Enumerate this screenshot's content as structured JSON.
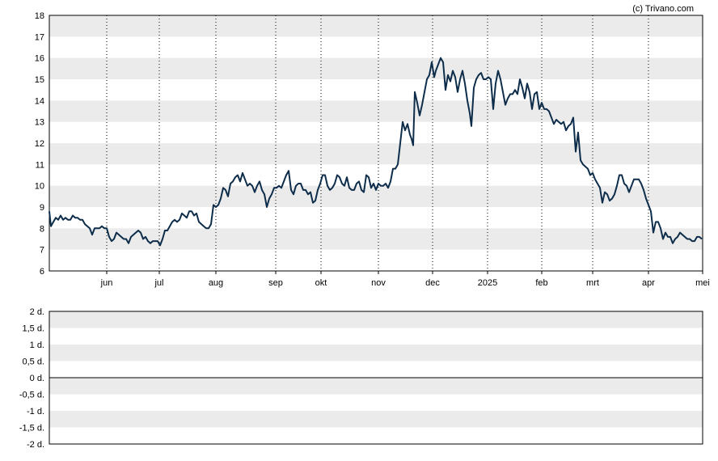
{
  "watermark": "(c) Trivano.com",
  "chart_data": [
    {
      "type": "line",
      "title": "",
      "xlabel": "",
      "ylabel": "",
      "ylim": [
        6,
        18
      ],
      "yticks": [
        "6",
        "7",
        "8",
        "9",
        "10",
        "11",
        "12",
        "13",
        "14",
        "15",
        "16",
        "17",
        "18"
      ],
      "xticks": [
        "jun",
        "jul",
        "aug",
        "sep",
        "okt",
        "nov",
        "dec",
        "2025",
        "feb",
        "mrt",
        "apr",
        "mei"
      ],
      "grid": "alternating horizontal bands, dotted vertical lines at month ticks",
      "line_color": "#0d2d4a",
      "series": [
        {
          "values": [
            [
              0,
              8.8
            ],
            [
              2,
              8.1
            ],
            [
              5,
              8.3
            ],
            [
              8,
              8.5
            ],
            [
              11,
              8.4
            ],
            [
              14,
              8.6
            ],
            [
              17,
              8.4
            ],
            [
              20,
              8.5
            ],
            [
              23,
              8.4
            ],
            [
              26,
              8.4
            ],
            [
              29,
              8.6
            ],
            [
              32,
              8.5
            ],
            [
              35,
              8.5
            ],
            [
              38,
              8.4
            ],
            [
              41,
              8.4
            ],
            [
              44,
              8.2
            ],
            [
              47,
              8.1
            ],
            [
              50,
              8.0
            ],
            [
              53,
              7.7
            ],
            [
              56,
              8.0
            ],
            [
              59,
              8.0
            ],
            [
              62,
              8.0
            ],
            [
              65,
              8.1
            ],
            [
              68,
              8.0
            ],
            [
              71,
              8.0
            ],
            [
              74,
              7.6
            ],
            [
              77,
              7.4
            ],
            [
              80,
              7.5
            ],
            [
              83,
              7.8
            ],
            [
              86,
              7.7
            ],
            [
              89,
              7.6
            ],
            [
              92,
              7.5
            ],
            [
              95,
              7.5
            ],
            [
              98,
              7.3
            ],
            [
              101,
              7.6
            ],
            [
              104,
              7.7
            ],
            [
              107,
              7.8
            ],
            [
              110,
              7.9
            ],
            [
              113,
              7.8
            ],
            [
              116,
              7.5
            ],
            [
              119,
              7.6
            ],
            [
              122,
              7.4
            ],
            [
              125,
              7.3
            ],
            [
              128,
              7.4
            ],
            [
              131,
              7.4
            ],
            [
              134,
              7.4
            ],
            [
              137,
              7.2
            ],
            [
              140,
              7.5
            ],
            [
              143,
              7.9
            ],
            [
              146,
              7.9
            ],
            [
              149,
              8.1
            ],
            [
              152,
              8.3
            ],
            [
              155,
              8.4
            ],
            [
              158,
              8.3
            ],
            [
              161,
              8.4
            ],
            [
              164,
              8.7
            ],
            [
              167,
              8.6
            ],
            [
              170,
              8.5
            ],
            [
              173,
              8.8
            ],
            [
              176,
              8.8
            ],
            [
              179,
              8.6
            ],
            [
              182,
              8.7
            ],
            [
              185,
              8.3
            ],
            [
              188,
              8.2
            ],
            [
              191,
              8.1
            ],
            [
              194,
              8.0
            ],
            [
              197,
              8.0
            ],
            [
              200,
              8.2
            ],
            [
              203,
              9.1
            ],
            [
              206,
              9.0
            ],
            [
              209,
              9.1
            ],
            [
              212,
              9.4
            ],
            [
              215,
              9.9
            ],
            [
              218,
              9.8
            ],
            [
              221,
              9.5
            ],
            [
              224,
              10.1
            ],
            [
              227,
              10.2
            ],
            [
              230,
              10.4
            ],
            [
              233,
              10.5
            ],
            [
              236,
              10.2
            ],
            [
              239,
              10.6
            ],
            [
              242,
              10.3
            ],
            [
              245,
              10.0
            ],
            [
              248,
              10.1
            ],
            [
              251,
              10.0
            ],
            [
              254,
              9.7
            ],
            [
              257,
              10.0
            ],
            [
              260,
              10.2
            ],
            [
              263,
              9.8
            ],
            [
              266,
              9.6
            ],
            [
              269,
              9.0
            ],
            [
              272,
              9.4
            ],
            [
              275,
              9.6
            ],
            [
              278,
              9.9
            ],
            [
              281,
              9.9
            ],
            [
              284,
              10.0
            ],
            [
              287,
              9.9
            ],
            [
              290,
              10.2
            ],
            [
              293,
              10.5
            ],
            [
              296,
              10.7
            ],
            [
              299,
              9.8
            ],
            [
              302,
              9.6
            ],
            [
              305,
              10.0
            ],
            [
              308,
              10.1
            ],
            [
              311,
              10.1
            ],
            [
              314,
              9.8
            ],
            [
              317,
              9.8
            ],
            [
              320,
              9.6
            ],
            [
              323,
              9.7
            ],
            [
              326,
              9.2
            ],
            [
              329,
              9.3
            ],
            [
              332,
              9.8
            ],
            [
              335,
              10.1
            ],
            [
              338,
              10.5
            ],
            [
              341,
              10.5
            ],
            [
              344,
              10.0
            ],
            [
              347,
              9.8
            ],
            [
              350,
              9.9
            ],
            [
              353,
              10.1
            ],
            [
              356,
              10.5
            ],
            [
              359,
              10.4
            ],
            [
              362,
              10.1
            ],
            [
              365,
              10.0
            ],
            [
              368,
              10.4
            ],
            [
              371,
              9.9
            ],
            [
              374,
              9.8
            ],
            [
              377,
              9.8
            ],
            [
              380,
              10.1
            ],
            [
              383,
              10.2
            ],
            [
              386,
              9.8
            ],
            [
              389,
              9.7
            ],
            [
              392,
              10.5
            ],
            [
              395,
              10.4
            ],
            [
              398,
              9.9
            ],
            [
              401,
              10.1
            ],
            [
              404,
              9.8
            ],
            [
              407,
              10.1
            ],
            [
              410,
              10.0
            ],
            [
              413,
              10.0
            ],
            [
              416,
              10.1
            ],
            [
              419,
              9.9
            ],
            [
              422,
              10.2
            ],
            [
              425,
              10.8
            ],
            [
              428,
              10.8
            ],
            [
              431,
              11.0
            ],
            [
              434,
              12.0
            ],
            [
              437,
              13.0
            ],
            [
              440,
              12.6
            ],
            [
              443,
              12.9
            ],
            [
              446,
              12.4
            ],
            [
              448,
              12.2
            ],
            [
              450,
              11.9
            ],
            [
              452,
              14.4
            ],
            [
              455,
              13.9
            ],
            [
              458,
              13.3
            ],
            [
              461,
              13.8
            ],
            [
              464,
              14.4
            ],
            [
              467,
              15.0
            ],
            [
              470,
              15.2
            ],
            [
              473,
              15.8
            ],
            [
              476,
              15.1
            ],
            [
              478,
              15.4
            ],
            [
              481,
              15.7
            ],
            [
              484,
              16.0
            ],
            [
              487,
              15.8
            ],
            [
              490,
              14.5
            ],
            [
              493,
              15.2
            ],
            [
              496,
              14.9
            ],
            [
              499,
              15.4
            ],
            [
              502,
              15.1
            ],
            [
              505,
              14.4
            ],
            [
              508,
              15.0
            ],
            [
              511,
              15.4
            ],
            [
              514,
              14.8
            ],
            [
              517,
              14.0
            ],
            [
              520,
              13.4
            ],
            [
              522,
              12.8
            ],
            [
              525,
              14.6
            ],
            [
              528,
              15.0
            ],
            [
              531,
              15.2
            ],
            [
              534,
              15.3
            ],
            [
              537,
              15.0
            ],
            [
              540,
              15.0
            ],
            [
              543,
              15.1
            ],
            [
              546,
              15.0
            ],
            [
              549,
              13.6
            ],
            [
              552,
              14.8
            ],
            [
              555,
              15.4
            ],
            [
              558,
              15.0
            ],
            [
              561,
              14.4
            ],
            [
              564,
              13.8
            ],
            [
              567,
              14.1
            ],
            [
              570,
              14.3
            ],
            [
              573,
              14.3
            ],
            [
              576,
              14.5
            ],
            [
              579,
              14.3
            ],
            [
              582,
              15.0
            ],
            [
              585,
              14.6
            ],
            [
              588,
              14.1
            ],
            [
              591,
              14.8
            ],
            [
              594,
              14.4
            ],
            [
              597,
              13.6
            ],
            [
              600,
              14.3
            ],
            [
              603,
              14.4
            ],
            [
              606,
              13.6
            ],
            [
              609,
              13.9
            ],
            [
              612,
              13.6
            ],
            [
              615,
              13.6
            ],
            [
              618,
              13.5
            ],
            [
              621,
              13.2
            ],
            [
              624,
              12.9
            ],
            [
              627,
              13.1
            ],
            [
              630,
              13.0
            ],
            [
              633,
              12.9
            ],
            [
              636,
              13.0
            ],
            [
              639,
              12.6
            ],
            [
              642,
              12.8
            ],
            [
              645,
              12.9
            ],
            [
              648,
              13.2
            ],
            [
              651,
              11.6
            ],
            [
              654,
              12.5
            ],
            [
              657,
              11.2
            ],
            [
              660,
              11.0
            ],
            [
              663,
              10.9
            ],
            [
              666,
              10.8
            ],
            [
              669,
              10.5
            ],
            [
              672,
              10.6
            ],
            [
              675,
              10.3
            ],
            [
              678,
              10.1
            ],
            [
              681,
              9.9
            ],
            [
              684,
              9.2
            ],
            [
              687,
              9.7
            ],
            [
              690,
              9.6
            ],
            [
              693,
              9.3
            ],
            [
              696,
              9.4
            ],
            [
              699,
              9.6
            ],
            [
              702,
              10.0
            ],
            [
              705,
              10.5
            ],
            [
              708,
              10.5
            ],
            [
              711,
              10.1
            ],
            [
              714,
              10.0
            ],
            [
              717,
              9.7
            ],
            [
              720,
              10.0
            ],
            [
              723,
              10.3
            ],
            [
              726,
              10.3
            ],
            [
              729,
              10.3
            ],
            [
              732,
              10.1
            ],
            [
              735,
              9.8
            ],
            [
              738,
              9.4
            ],
            [
              741,
              9.1
            ],
            [
              744,
              8.8
            ],
            [
              747,
              7.8
            ],
            [
              750,
              8.3
            ],
            [
              753,
              8.3
            ],
            [
              756,
              8.0
            ],
            [
              759,
              7.5
            ],
            [
              762,
              7.8
            ],
            [
              765,
              7.6
            ],
            [
              768,
              7.6
            ],
            [
              771,
              7.3
            ],
            [
              774,
              7.5
            ],
            [
              777,
              7.6
            ],
            [
              780,
              7.8
            ],
            [
              783,
              7.7
            ],
            [
              786,
              7.6
            ],
            [
              789,
              7.5
            ],
            [
              792,
              7.5
            ],
            [
              795,
              7.4
            ],
            [
              798,
              7.4
            ],
            [
              801,
              7.6
            ],
            [
              804,
              7.6
            ],
            [
              807,
              7.5
            ]
          ]
        }
      ]
    },
    {
      "type": "line",
      "title": "",
      "xlabel": "",
      "ylabel": "",
      "ylim": [
        -2,
        2
      ],
      "yticks": [
        "-2 d.",
        "-1,5 d.",
        "-1 d.",
        "-0,5 d.",
        "0 d.",
        "0,5 d.",
        "1 d.",
        "1,5 d.",
        "2 d."
      ],
      "grid": "alternating horizontal bands, line at 0",
      "series": []
    }
  ]
}
